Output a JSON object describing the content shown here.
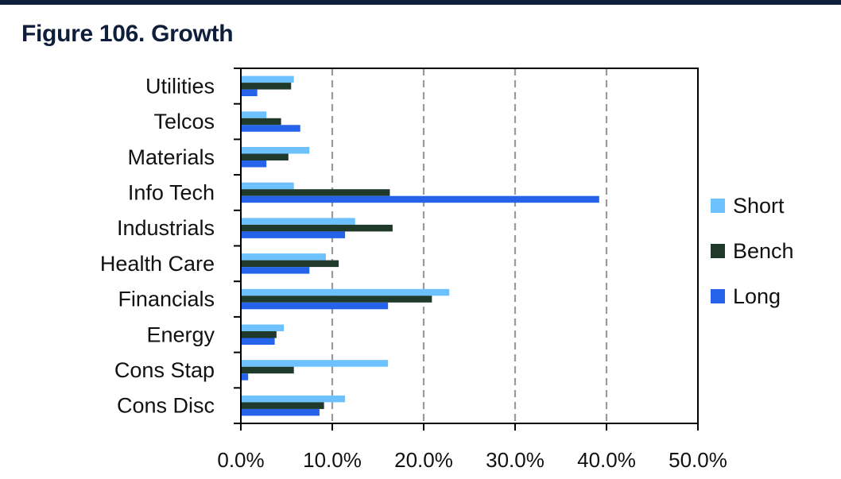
{
  "header": {
    "title": "Figure 106. Growth"
  },
  "chart_data": {
    "type": "bar",
    "orientation": "horizontal",
    "title": "Figure 106. Growth",
    "xlabel": "",
    "ylabel": "",
    "categories": [
      "Utilities",
      "Telcos",
      "Materials",
      "Info Tech",
      "Industrials",
      "Health Care",
      "Financials",
      "Energy",
      "Cons Stap",
      "Cons Disc"
    ],
    "series": [
      {
        "name": "Short",
        "color": "#6ec1ff",
        "values": [
          5.8,
          2.8,
          7.5,
          5.8,
          12.5,
          9.3,
          22.8,
          4.7,
          16.1,
          11.4
        ]
      },
      {
        "name": "Bench",
        "color": "#1f3a2a",
        "values": [
          5.5,
          4.4,
          5.2,
          16.3,
          16.6,
          10.7,
          20.9,
          3.9,
          5.8,
          9.1
        ]
      },
      {
        "name": "Long",
        "color": "#2563eb",
        "values": [
          1.8,
          6.5,
          2.8,
          39.2,
          11.4,
          7.5,
          16.1,
          3.7,
          0.8,
          8.6
        ]
      }
    ],
    "xlim": [
      0,
      50
    ],
    "xticks": [
      0,
      10,
      20,
      30,
      40,
      50
    ],
    "xtick_labels": [
      "0.0%",
      "10.0%",
      "20.0%",
      "30.0%",
      "40.0%",
      "50.0%"
    ],
    "grid": "vertical-dashed",
    "legend": "right"
  }
}
